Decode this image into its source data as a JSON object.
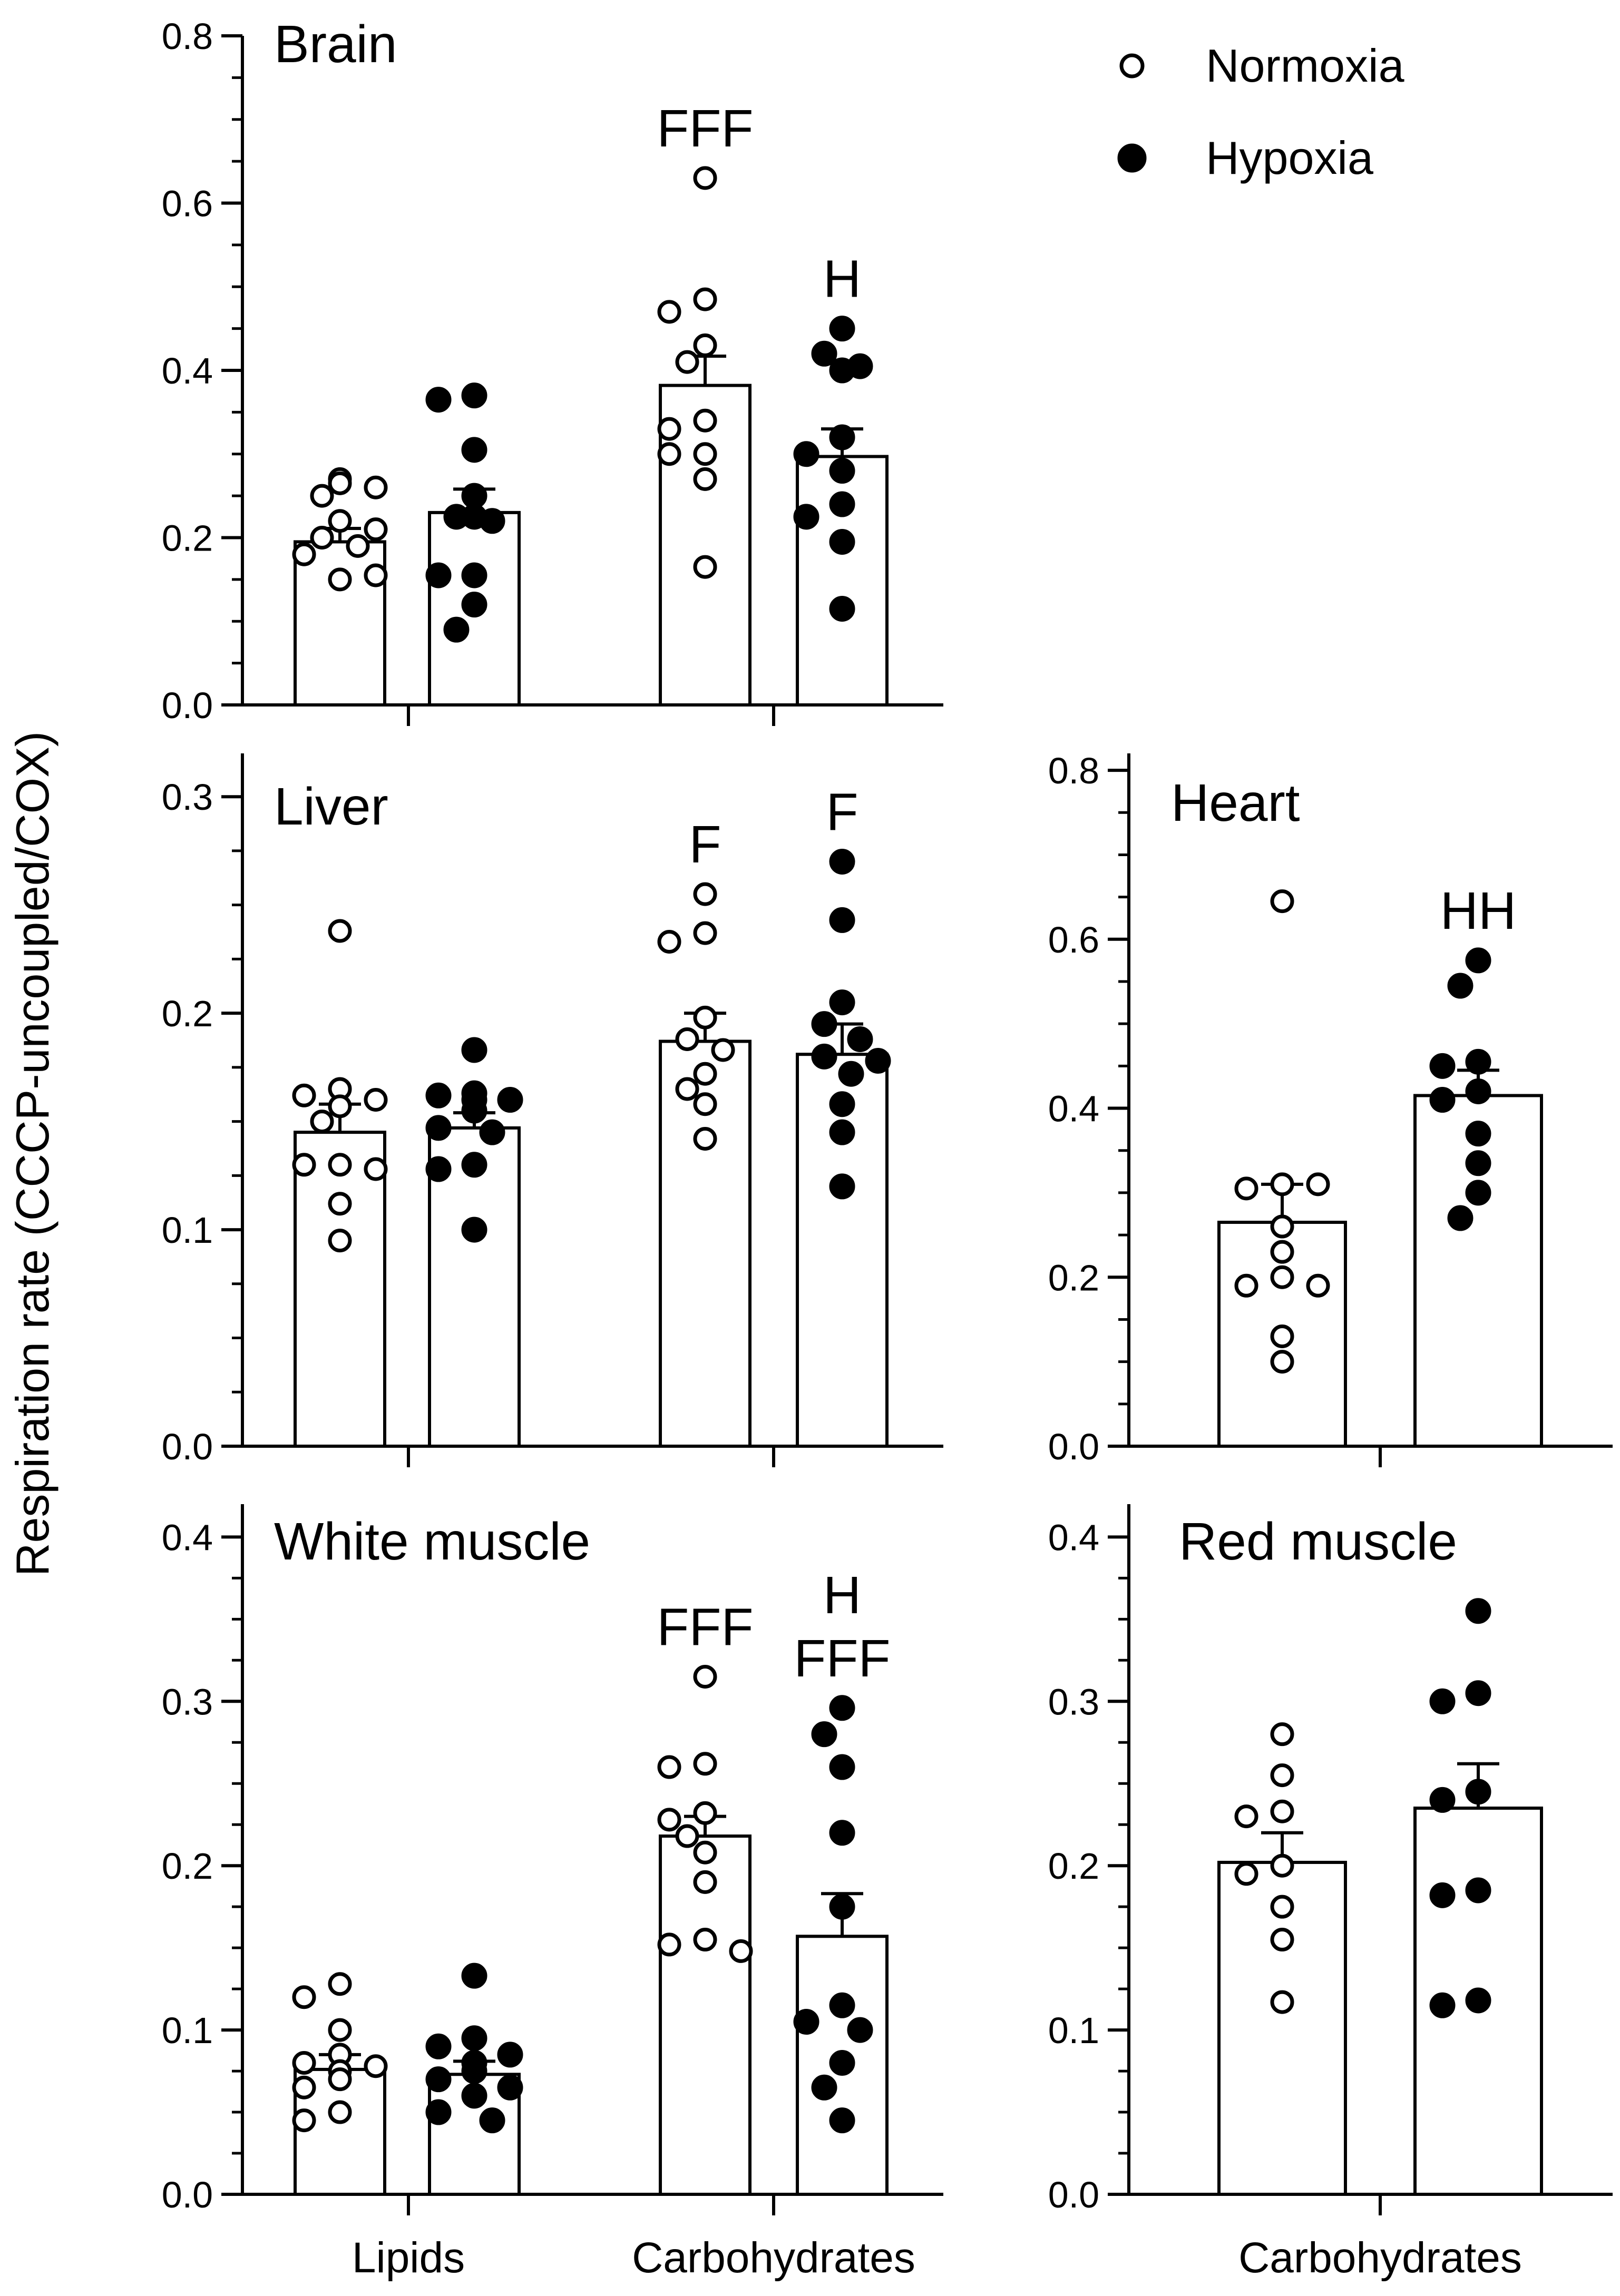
{
  "figure": {
    "ylabel": "Respiration rate (CCCP-uncoupled/COX)",
    "legend": [
      {
        "label": "Normoxia",
        "marker": "open-circle"
      },
      {
        "label": "Hypoxia",
        "marker": "filled-circle"
      }
    ]
  },
  "chart_data": [
    {
      "id": "brain",
      "type": "bar",
      "title": "Brain",
      "categories": [
        "Lipids",
        "Carbohydrates"
      ],
      "show_category_labels": false,
      "ylim": [
        0,
        0.8
      ],
      "major_ticks": [
        0.0,
        0.2,
        0.4,
        0.6,
        0.8
      ],
      "tick_labels": [
        "0.0",
        "0.2",
        "0.4",
        "0.6",
        "0.8"
      ],
      "minor_step": 0.05,
      "series": [
        {
          "name": "Normoxia",
          "marker": "open",
          "values": [
            0.195,
            0.382
          ],
          "sem": [
            0.016,
            0.035
          ],
          "points": [
            [
              0.27,
              0.25,
              0.26,
              0.265,
              0.22,
              0.2,
              0.19,
              0.21,
              0.18,
              0.15,
              0.155
            ],
            [
              0.63,
              0.485,
              0.47,
              0.43,
              0.41,
              0.34,
              0.33,
              0.3,
              0.3,
              0.27,
              0.165
            ]
          ],
          "sig": [
            "",
            "FFF"
          ]
        },
        {
          "name": "Hypoxia",
          "marker": "filled",
          "values": [
            0.23,
            0.297
          ],
          "sem": [
            0.028,
            0.033
          ],
          "points": [
            [
              0.37,
              0.365,
              0.305,
              0.25,
              0.225,
              0.22,
              0.225,
              0.155,
              0.155,
              0.12,
              0.09
            ],
            [
              0.45,
              0.42,
              0.405,
              0.4,
              0.32,
              0.3,
              0.28,
              0.24,
              0.225,
              0.195,
              0.115
            ]
          ],
          "sig": [
            "",
            "H"
          ]
        }
      ]
    },
    {
      "id": "liver",
      "type": "bar",
      "title": "Liver",
      "categories": [
        "Lipids",
        "Carbohydrates"
      ],
      "show_category_labels": false,
      "ylim": [
        0,
        0.32
      ],
      "major_ticks": [
        0.0,
        0.1,
        0.2,
        0.3
      ],
      "tick_labels": [
        "0.0",
        "0.1",
        "0.2",
        "0.3"
      ],
      "minor_step": 0.025,
      "series": [
        {
          "name": "Normoxia",
          "marker": "open",
          "values": [
            0.145,
            0.187
          ],
          "sem": [
            0.013,
            0.013
          ],
          "points": [
            [
              0.238,
              0.165,
              0.162,
              0.16,
              0.157,
              0.15,
              0.13,
              0.13,
              0.128,
              0.112,
              0.095
            ],
            [
              0.255,
              0.237,
              0.233,
              0.198,
              0.188,
              0.183,
              0.172,
              0.165,
              0.158,
              0.142
            ]
          ],
          "sig": [
            "",
            "F"
          ]
        },
        {
          "name": "Hypoxia",
          "marker": "filled",
          "values": [
            0.147,
            0.181
          ],
          "sem": [
            0.007,
            0.014
          ],
          "points": [
            [
              0.183,
              0.163,
              0.162,
              0.16,
              0.16,
              0.155,
              0.147,
              0.145,
              0.13,
              0.128,
              0.1
            ],
            [
              0.27,
              0.243,
              0.205,
              0.195,
              0.188,
              0.18,
              0.178,
              0.172,
              0.158,
              0.145,
              0.12
            ]
          ],
          "sig": [
            "",
            "F"
          ]
        }
      ]
    },
    {
      "id": "heart",
      "type": "bar",
      "title": "Heart",
      "categories": [
        "Carbohydrates"
      ],
      "show_category_labels": false,
      "ylim": [
        0,
        0.82
      ],
      "major_ticks": [
        0.0,
        0.2,
        0.4,
        0.6,
        0.8
      ],
      "tick_labels": [
        "0.0",
        "0.2",
        "0.4",
        "0.6",
        "0.8"
      ],
      "minor_step": 0.05,
      "series": [
        {
          "name": "Normoxia",
          "marker": "open",
          "values": [
            0.265
          ],
          "sem": [
            0.045
          ],
          "points": [
            [
              0.645,
              0.31,
              0.305,
              0.31,
              0.26,
              0.23,
              0.2,
              0.19,
              0.19,
              0.13,
              0.1
            ]
          ],
          "sig": [
            ""
          ]
        },
        {
          "name": "Hypoxia",
          "marker": "filled",
          "values": [
            0.415
          ],
          "sem": [
            0.03
          ],
          "points": [
            [
              0.575,
              0.545,
              0.455,
              0.45,
              0.42,
              0.41,
              0.37,
              0.335,
              0.3,
              0.27
            ]
          ],
          "sig": [
            "HH"
          ]
        }
      ]
    },
    {
      "id": "white-muscle",
      "type": "bar",
      "title": "White muscle",
      "categories": [
        "Lipids",
        "Carbohydrates"
      ],
      "show_category_labels": true,
      "ylim": [
        0,
        0.42
      ],
      "major_ticks": [
        0.0,
        0.1,
        0.2,
        0.3,
        0.4
      ],
      "tick_labels": [
        "0.0",
        "0.1",
        "0.2",
        "0.3",
        "0.4"
      ],
      "minor_step": 0.025,
      "series": [
        {
          "name": "Normoxia",
          "marker": "open",
          "values": [
            0.076,
            0.218
          ],
          "sem": [
            0.009,
            0.012
          ],
          "points": [
            [
              0.128,
              0.12,
              0.1,
              0.085,
              0.08,
              0.078,
              0.075,
              0.07,
              0.065,
              0.05,
              0.045
            ],
            [
              0.315,
              0.262,
              0.26,
              0.232,
              0.228,
              0.218,
              0.208,
              0.19,
              0.155,
              0.152,
              0.148
            ]
          ],
          "sig": [
            "",
            "FFF"
          ]
        },
        {
          "name": "Hypoxia",
          "marker": "filled",
          "values": [
            0.073,
            0.157
          ],
          "sem": [
            0.008,
            0.026
          ],
          "points": [
            [
              0.133,
              0.095,
              0.09,
              0.085,
              0.08,
              0.075,
              0.07,
              0.065,
              0.06,
              0.05,
              0.045
            ],
            [
              0.296,
              0.28,
              0.26,
              0.22,
              0.175,
              0.115,
              0.105,
              0.1,
              0.08,
              0.065,
              0.045
            ]
          ],
          "sig": [
            "",
            "H\nFFF"
          ]
        }
      ]
    },
    {
      "id": "red-muscle",
      "type": "bar",
      "title": "Red muscle",
      "categories": [
        "Carbohydrates"
      ],
      "show_category_labels": true,
      "ylim": [
        0,
        0.42
      ],
      "major_ticks": [
        0.0,
        0.1,
        0.2,
        0.3,
        0.4
      ],
      "tick_labels": [
        "0.0",
        "0.1",
        "0.2",
        "0.3",
        "0.4"
      ],
      "minor_step": 0.025,
      "series": [
        {
          "name": "Normoxia",
          "marker": "open",
          "values": [
            0.202
          ],
          "sem": [
            0.018
          ],
          "points": [
            [
              0.28,
              0.255,
              0.233,
              0.23,
              0.2,
              0.195,
              0.175,
              0.155,
              0.117
            ]
          ],
          "sig": [
            ""
          ]
        },
        {
          "name": "Hypoxia",
          "marker": "filled",
          "values": [
            0.235
          ],
          "sem": [
            0.027
          ],
          "points": [
            [
              0.355,
              0.305,
              0.3,
              0.245,
              0.24,
              0.185,
              0.182,
              0.118,
              0.115
            ]
          ],
          "sig": [
            ""
          ]
        }
      ]
    }
  ]
}
